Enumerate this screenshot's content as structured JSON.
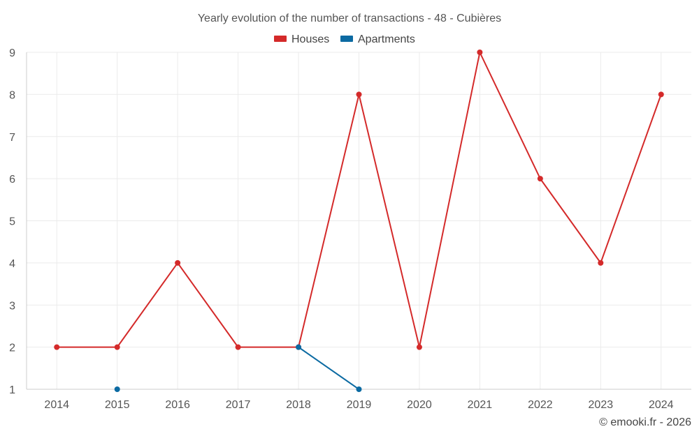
{
  "chart_data": {
    "type": "line",
    "title": "Yearly evolution of the number of transactions - 48 - Cubières",
    "xlabel": "",
    "ylabel": "",
    "categories": [
      "2014",
      "2015",
      "2016",
      "2017",
      "2018",
      "2019",
      "2020",
      "2021",
      "2022",
      "2023",
      "2024"
    ],
    "ylim": [
      1,
      9
    ],
    "yticks": [
      1,
      2,
      3,
      4,
      5,
      6,
      7,
      8,
      9
    ],
    "grid": true,
    "legend_position": "top-center",
    "series": [
      {
        "name": "Houses",
        "color": "#d42a2a",
        "values": [
          2,
          2,
          4,
          2,
          2,
          8,
          2,
          9,
          6,
          4,
          8
        ]
      },
      {
        "name": "Apartments",
        "color": "#0b6aa2",
        "values": [
          null,
          1,
          null,
          null,
          2,
          1,
          null,
          null,
          null,
          null,
          null
        ]
      }
    ]
  },
  "credit": "© emooki.fr - 2026"
}
